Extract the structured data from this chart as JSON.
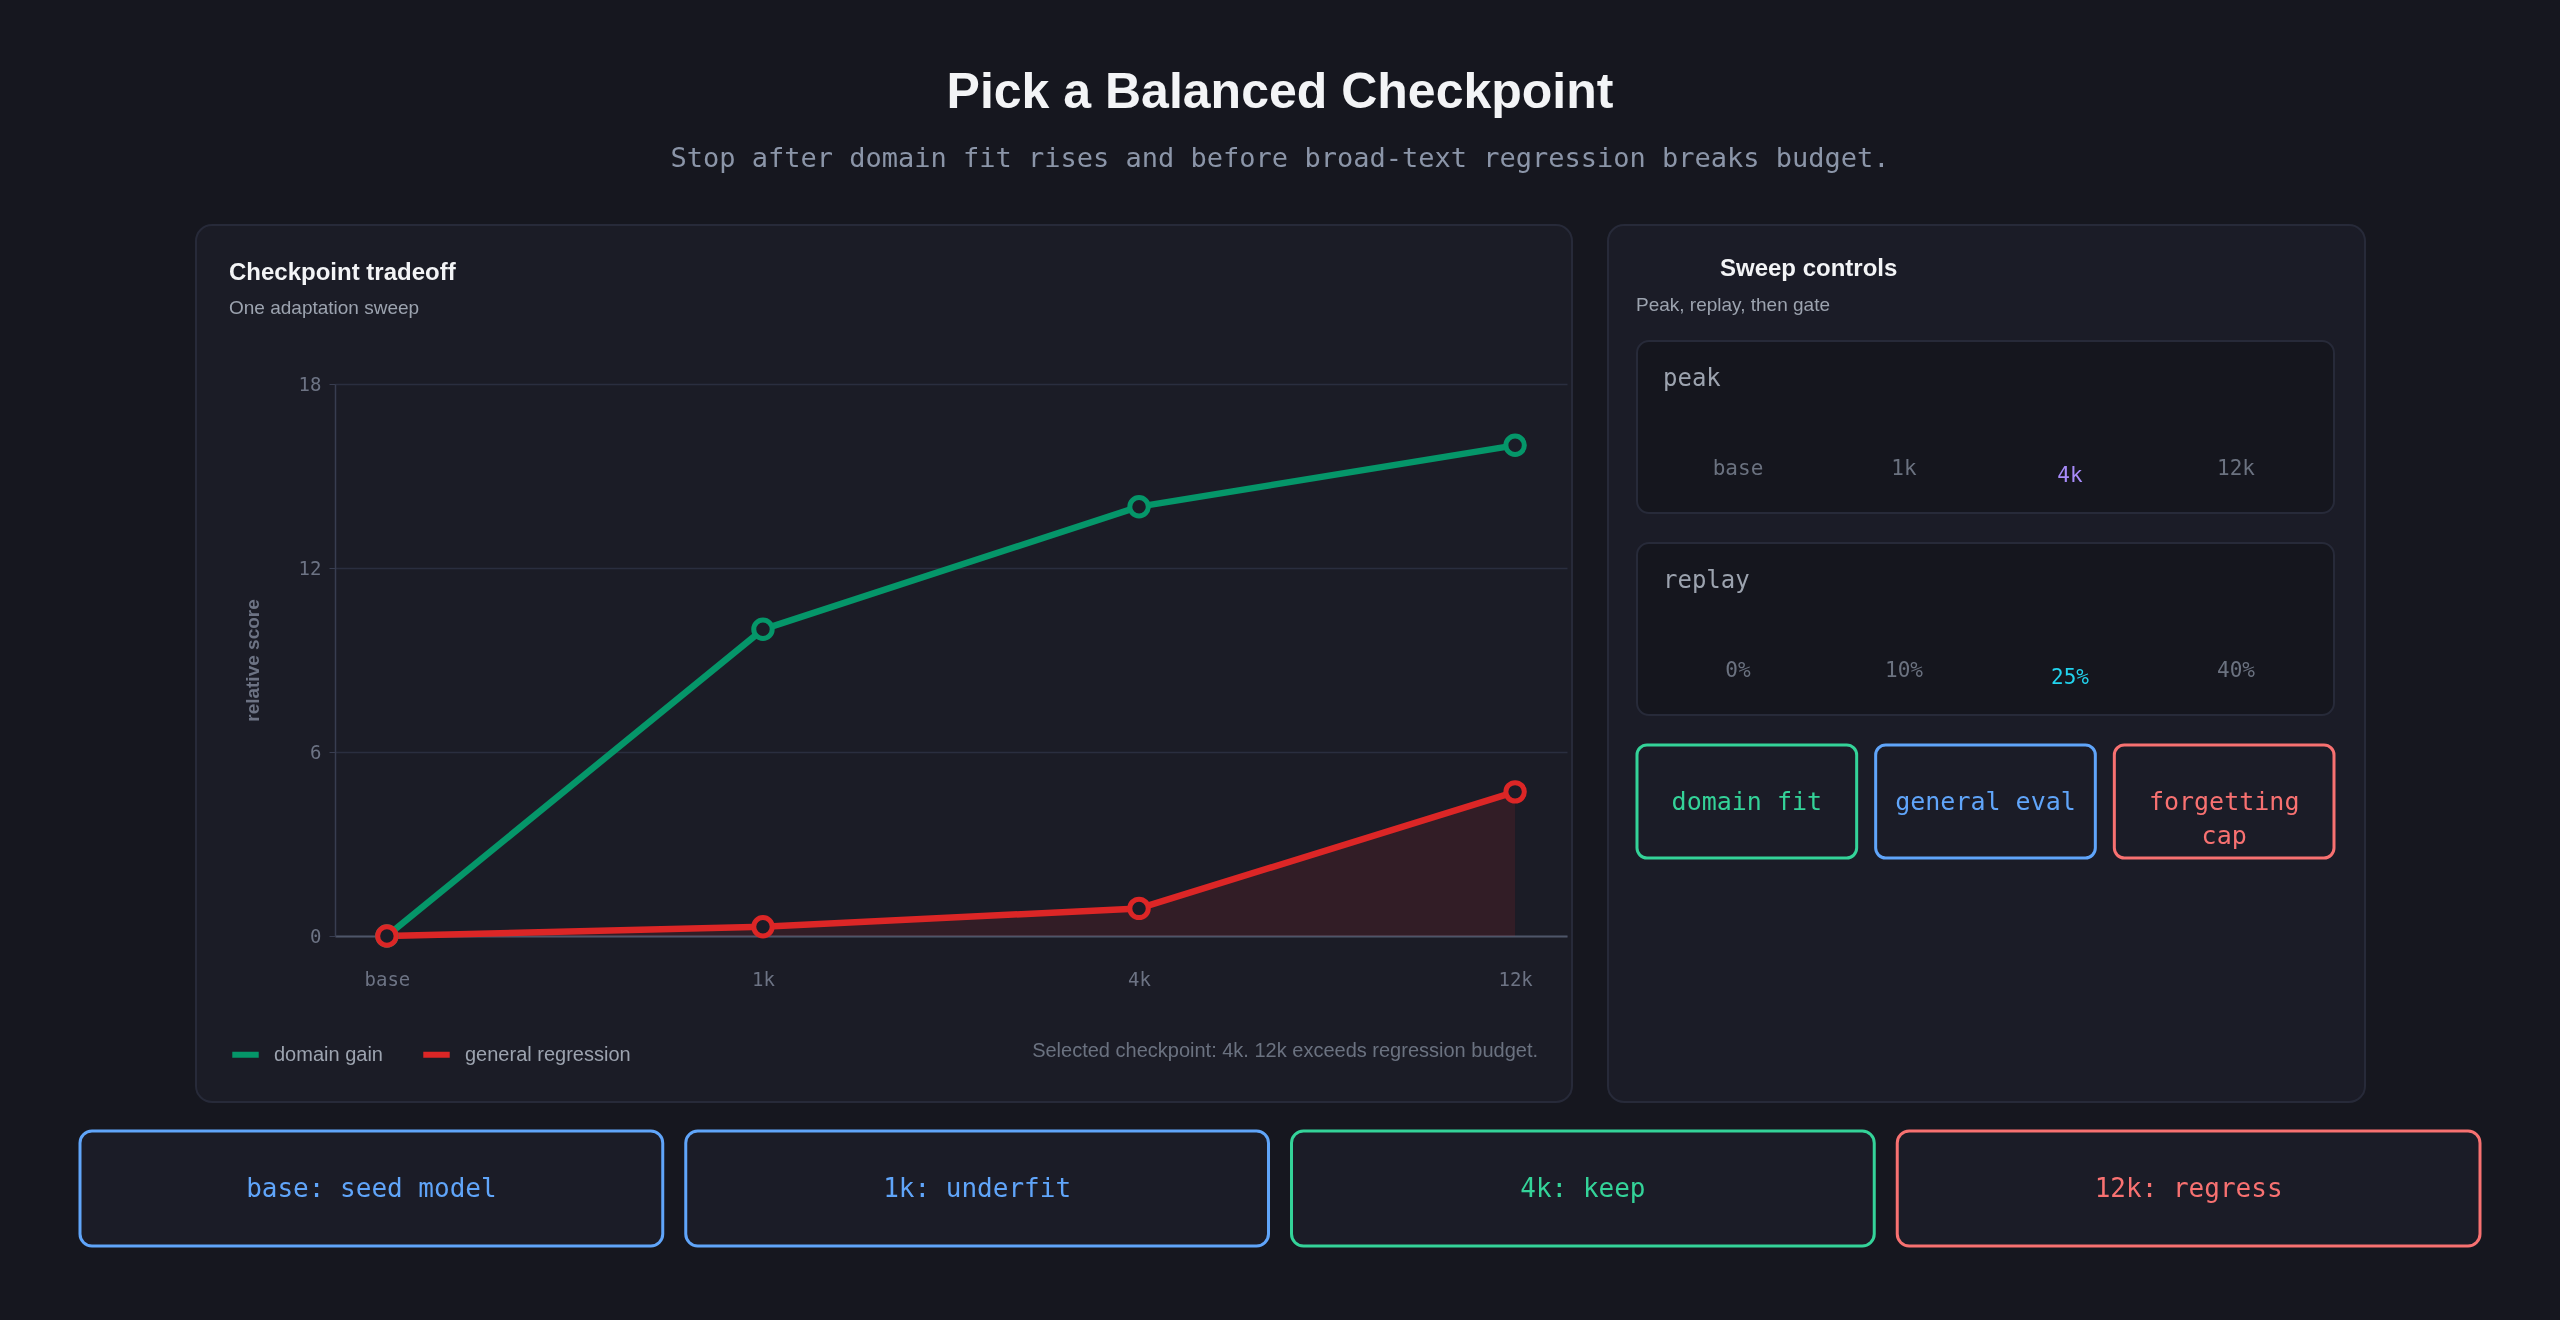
{
  "chart_data": [
    {
      "type": "other",
      "title": "Pick a Balanced Checkpoint",
      "subtitle": "Stop after domain fit rises and before broad-text regression breaks budget."
    },
    {
      "type": "line",
      "title": "Checkpoint tradeoff",
      "subtitle": "One adaptation sweep",
      "ylabel": "relative score",
      "categories": [
        "base",
        "1k",
        "4k",
        "12k"
      ],
      "series": [
        {
          "name": "domain gain",
          "color": "#059669",
          "values": [
            0,
            10,
            14,
            16
          ]
        },
        {
          "name": "general regression",
          "type": "area",
          "color": "#dc2626",
          "values": [
            0,
            0.3,
            0.9,
            4.7
          ]
        }
      ],
      "ylim": [
        0,
        18
      ],
      "yticks": [
        0,
        6,
        12,
        18
      ],
      "grid": "y",
      "legend": "bottom left",
      "marker": "circle",
      "line_style": "solid",
      "annotations": [
        "Selected checkpoint: 4k. 12k exceeds regression budget."
      ]
    },
    {
      "type": "other",
      "title": "Sweep controls",
      "subtitle": "Peak, replay, then gate",
      "annotations": [
        "peak",
        "base",
        "1k",
        "4k",
        "12k",
        "replay",
        "0%",
        "10%",
        "25%",
        "40%",
        "domain fit",
        "general eval",
        "forgetting cap"
      ]
    },
    {
      "type": "other",
      "annotations": [
        "base: seed model",
        "1k: underfit",
        "4k: keep",
        "12k: regress"
      ]
    }
  ]
}
